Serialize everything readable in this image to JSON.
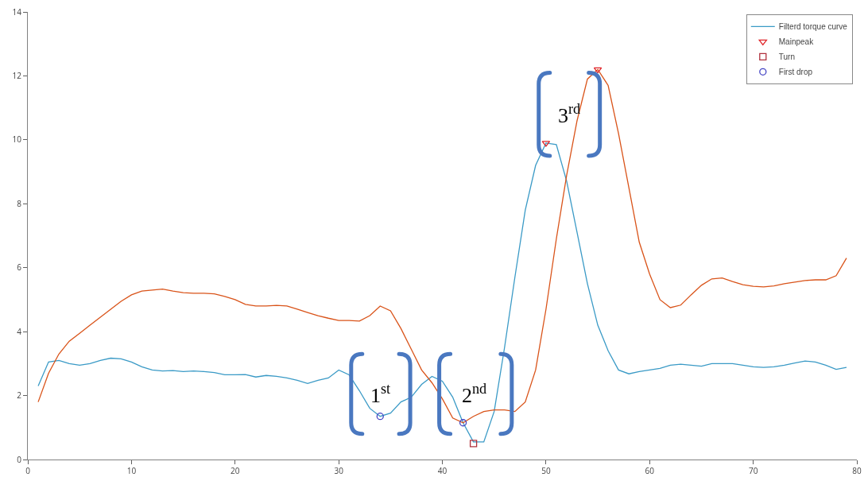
{
  "chart_data": {
    "type": "line",
    "x": [
      1,
      2,
      3,
      4,
      5,
      6,
      7,
      8,
      9,
      10,
      11,
      12,
      13,
      14,
      15,
      16,
      17,
      18,
      19,
      20,
      21,
      22,
      23,
      24,
      25,
      26,
      27,
      28,
      29,
      30,
      31,
      32,
      33,
      34,
      35,
      36,
      37,
      38,
      39,
      40,
      41,
      42,
      43,
      44,
      45,
      46,
      47,
      48,
      49,
      50,
      51,
      52,
      53,
      54,
      55,
      56,
      57,
      58,
      59,
      60,
      61,
      62,
      63,
      64,
      65,
      66,
      67,
      68,
      69,
      70,
      71,
      72,
      73,
      74,
      75,
      76,
      77,
      78,
      79
    ],
    "series": [
      {
        "name": "Filterd torque curve",
        "color": "#3a9ac6",
        "marker": "none",
        "values": [
          2.3,
          3.05,
          3.1,
          3.0,
          2.95,
          3.0,
          3.1,
          3.17,
          3.15,
          3.05,
          2.9,
          2.8,
          2.77,
          2.78,
          2.75,
          2.77,
          2.75,
          2.72,
          2.65,
          2.65,
          2.66,
          2.58,
          2.63,
          2.6,
          2.55,
          2.48,
          2.38,
          2.48,
          2.55,
          2.8,
          2.65,
          2.15,
          1.6,
          1.35,
          1.45,
          1.8,
          1.95,
          2.35,
          2.6,
          2.45,
          1.95,
          1.15,
          0.55,
          0.55,
          1.5,
          3.5,
          5.7,
          7.8,
          9.2,
          9.9,
          9.85,
          8.7,
          7.1,
          5.5,
          4.2,
          3.4,
          2.8,
          2.68,
          2.75,
          2.8,
          2.85,
          2.95,
          2.98,
          2.95,
          2.92,
          3.0,
          3.0,
          3.0,
          2.95,
          2.9,
          2.88,
          2.9,
          2.95,
          3.02,
          3.08,
          3.05,
          2.95,
          2.82,
          2.88
        ]
      },
      {
        "color": "#d95319",
        "marker": "none",
        "values": [
          1.8,
          2.7,
          3.3,
          3.7,
          3.95,
          4.2,
          4.45,
          4.7,
          4.95,
          5.15,
          5.27,
          5.3,
          5.33,
          5.27,
          5.22,
          5.2,
          5.2,
          5.18,
          5.1,
          5.0,
          4.85,
          4.8,
          4.8,
          4.82,
          4.8,
          4.7,
          4.6,
          4.5,
          4.42,
          4.35,
          4.35,
          4.33,
          4.5,
          4.8,
          4.65,
          4.1,
          3.45,
          2.8,
          2.4,
          1.9,
          1.3,
          1.15,
          1.35,
          1.5,
          1.55,
          1.55,
          1.5,
          1.8,
          2.8,
          4.7,
          6.9,
          8.9,
          10.6,
          11.9,
          12.2,
          11.7,
          10.2,
          8.5,
          6.8,
          5.8,
          5.0,
          4.75,
          4.83,
          5.15,
          5.45,
          5.65,
          5.68,
          5.57,
          5.47,
          5.42,
          5.4,
          5.43,
          5.5,
          5.55,
          5.6,
          5.62,
          5.62,
          5.75,
          6.3
        ]
      },
      {
        "name": "Mainpeak",
        "type": "scatter",
        "marker": "triangle",
        "color": "#e0262a",
        "x": [
          50,
          55
        ],
        "values": [
          9.9,
          12.2
        ]
      },
      {
        "name": "Turn",
        "type": "scatter",
        "marker": "square",
        "color": "#b0303c",
        "x": [
          43
        ],
        "values": [
          0.5
        ]
      },
      {
        "name": "First drop",
        "type": "scatter",
        "marker": "circle",
        "color": "#4444c4",
        "x": [
          34,
          42
        ],
        "values": [
          1.35,
          1.15
        ]
      }
    ],
    "xlim": [
      0,
      80
    ],
    "xticks": [
      0,
      10,
      20,
      30,
      40,
      50,
      60,
      70,
      80
    ],
    "ylim": [
      0,
      14
    ],
    "yticks": [
      0,
      2,
      4,
      6,
      8,
      10,
      12,
      14
    ],
    "grid": false,
    "legend": "top right",
    "annotations": [
      "1$^{st}$",
      "2$^{nd}$",
      "3$^{rd}$"
    ]
  }
}
